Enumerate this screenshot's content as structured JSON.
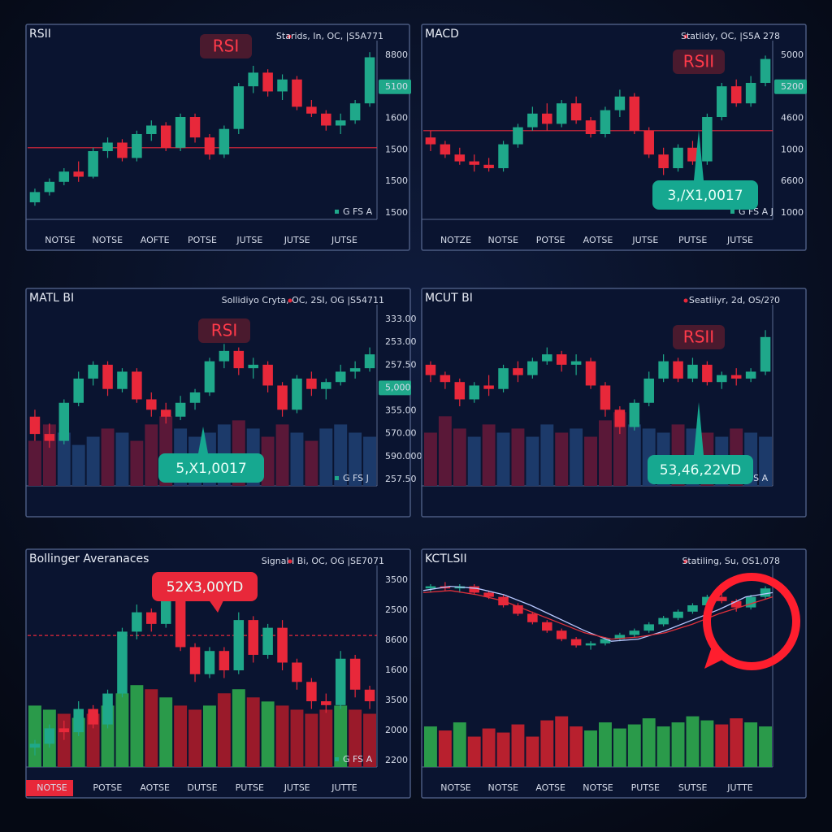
{
  "panels": [
    {
      "title": "RSII",
      "legend": "Starids, In, OC, |S5A771",
      "badge": "RSI",
      "callout": null,
      "y_labels": [
        "8800",
        "5100",
        "1600",
        "1500",
        "1500",
        "1500"
      ],
      "x_labels": [
        "NOTSE",
        "NOTSE",
        "AOFTE",
        "POTSE",
        "JUTSE",
        "JUTSE",
        "JUTSE"
      ],
      "footer": "G FS A",
      "ylim": [
        0,
        100
      ],
      "hline": 42,
      "candles": [
        [
          10,
          18,
          8,
          16
        ],
        [
          16,
          24,
          14,
          22
        ],
        [
          22,
          30,
          20,
          28
        ],
        [
          28,
          34,
          22,
          25
        ],
        [
          25,
          42,
          24,
          40
        ],
        [
          40,
          48,
          36,
          45
        ],
        [
          45,
          47,
          34,
          36
        ],
        [
          36,
          52,
          34,
          50
        ],
        [
          50,
          58,
          46,
          55
        ],
        [
          55,
          57,
          40,
          42
        ],
        [
          42,
          62,
          40,
          60
        ],
        [
          60,
          62,
          45,
          48
        ],
        [
          48,
          50,
          35,
          38
        ],
        [
          38,
          55,
          36,
          53
        ],
        [
          53,
          80,
          50,
          78
        ],
        [
          78,
          90,
          74,
          86
        ],
        [
          86,
          88,
          72,
          75
        ],
        [
          75,
          85,
          70,
          82
        ],
        [
          82,
          84,
          64,
          66
        ],
        [
          66,
          70,
          60,
          62
        ],
        [
          62,
          64,
          52,
          55
        ],
        [
          55,
          62,
          50,
          58
        ],
        [
          58,
          70,
          56,
          68
        ],
        [
          68,
          98,
          66,
          95
        ]
      ]
    },
    {
      "title": "MACD",
      "legend": "Statlidy, OC, |S5A 278",
      "badge": "RSII",
      "callout": "3,/X1,0017",
      "y_labels": [
        "5000",
        "5200",
        "4600",
        "1000",
        "6600",
        "1000"
      ],
      "x_labels": [
        "NOTZE",
        "NOTSE",
        "POTSE",
        "AOTSE",
        "JUTSE",
        "PUTSE",
        "JUTSE"
      ],
      "footer": "G FS A J",
      "ylim": [
        0,
        100
      ],
      "hline": 52,
      "candles": [
        [
          48,
          52,
          40,
          44
        ],
        [
          44,
          46,
          36,
          38
        ],
        [
          38,
          42,
          32,
          34
        ],
        [
          34,
          38,
          28,
          32
        ],
        [
          32,
          36,
          28,
          30
        ],
        [
          30,
          46,
          28,
          44
        ],
        [
          44,
          56,
          42,
          54
        ],
        [
          54,
          66,
          52,
          62
        ],
        [
          62,
          68,
          52,
          56
        ],
        [
          56,
          70,
          54,
          68
        ],
        [
          68,
          72,
          56,
          58
        ],
        [
          58,
          60,
          48,
          50
        ],
        [
          50,
          66,
          48,
          64
        ],
        [
          64,
          76,
          60,
          72
        ],
        [
          72,
          74,
          50,
          52
        ],
        [
          52,
          54,
          36,
          38
        ],
        [
          38,
          42,
          26,
          30
        ],
        [
          30,
          44,
          28,
          42
        ],
        [
          42,
          46,
          32,
          34
        ],
        [
          34,
          62,
          32,
          60
        ],
        [
          60,
          80,
          58,
          78
        ],
        [
          78,
          82,
          66,
          68
        ],
        [
          68,
          84,
          66,
          80
        ],
        [
          80,
          96,
          78,
          94
        ]
      ]
    },
    {
      "title": "MATL BI",
      "legend": "Sollidiyo Cryta, OC, 2SI, OG |S54711",
      "badge": "RSI",
      "callout": "5,X1,0017",
      "y_labels": [
        "333.00",
        "253.00",
        "257.50",
        "5,000",
        "355.00",
        "570.00",
        "590.000",
        "257.50"
      ],
      "x_labels": [],
      "footer": "G FS J",
      "ylim": [
        0,
        100
      ],
      "hline": null,
      "candles": [
        [
          40,
          44,
          26,
          30
        ],
        [
          30,
          36,
          22,
          26
        ],
        [
          26,
          50,
          24,
          48
        ],
        [
          48,
          66,
          46,
          62
        ],
        [
          62,
          72,
          58,
          70
        ],
        [
          70,
          72,
          52,
          56
        ],
        [
          56,
          68,
          54,
          66
        ],
        [
          66,
          68,
          48,
          50
        ],
        [
          50,
          54,
          40,
          44
        ],
        [
          44,
          48,
          36,
          40
        ],
        [
          40,
          52,
          38,
          48
        ],
        [
          48,
          56,
          44,
          54
        ],
        [
          54,
          74,
          52,
          72
        ],
        [
          72,
          82,
          68,
          78
        ],
        [
          78,
          80,
          64,
          68
        ],
        [
          68,
          74,
          62,
          70
        ],
        [
          70,
          72,
          54,
          58
        ],
        [
          58,
          60,
          40,
          44
        ],
        [
          44,
          64,
          42,
          62
        ],
        [
          62,
          66,
          52,
          56
        ],
        [
          56,
          62,
          50,
          60
        ],
        [
          60,
          70,
          58,
          66
        ],
        [
          66,
          72,
          62,
          68
        ],
        [
          68,
          80,
          66,
          76
        ]
      ],
      "volume": [
        22,
        30,
        26,
        20,
        24,
        28,
        26,
        22,
        30,
        34,
        28,
        24,
        26,
        30,
        32,
        28,
        24,
        30,
        26,
        22,
        28,
        30,
        26,
        24
      ]
    },
    {
      "title": "MCUT BI",
      "legend": "Seatliiyr, 2d, OS/2?0",
      "badge": "RSII",
      "callout": "53,46,22VD",
      "y_labels": [],
      "x_labels": [],
      "footer": "G FS A",
      "ylim": [
        0,
        100
      ],
      "hline": null,
      "candles": [
        [
          70,
          72,
          60,
          64
        ],
        [
          64,
          66,
          56,
          60
        ],
        [
          60,
          62,
          46,
          50
        ],
        [
          50,
          60,
          48,
          58
        ],
        [
          58,
          64,
          52,
          56
        ],
        [
          56,
          70,
          54,
          68
        ],
        [
          68,
          72,
          60,
          64
        ],
        [
          64,
          74,
          62,
          72
        ],
        [
          72,
          80,
          70,
          76
        ],
        [
          76,
          78,
          66,
          70
        ],
        [
          70,
          76,
          64,
          72
        ],
        [
          72,
          74,
          56,
          58
        ],
        [
          58,
          60,
          40,
          44
        ],
        [
          44,
          46,
          30,
          34
        ],
        [
          34,
          50,
          32,
          48
        ],
        [
          48,
          66,
          46,
          62
        ],
        [
          62,
          76,
          60,
          72
        ],
        [
          72,
          74,
          60,
          62
        ],
        [
          62,
          74,
          60,
          70
        ],
        [
          70,
          72,
          58,
          60
        ],
        [
          60,
          66,
          56,
          64
        ],
        [
          64,
          68,
          58,
          62
        ],
        [
          62,
          68,
          60,
          66
        ],
        [
          66,
          90,
          64,
          86
        ]
      ],
      "volume": [
        26,
        34,
        28,
        24,
        30,
        26,
        28,
        24,
        30,
        26,
        28,
        24,
        32,
        36,
        30,
        28,
        26,
        30,
        28,
        26,
        24,
        28,
        26,
        24
      ]
    },
    {
      "title": "Bollinger Averanaces",
      "legend": "Signal I Bi, OC, OG |SE7071",
      "badge": null,
      "callout": "52X3,00YD",
      "y_labels": [
        "3500",
        "2500",
        "8600",
        "1600",
        "3500",
        "2000",
        "2200"
      ],
      "x_labels": [
        "NOTSE",
        "POTSE",
        "AOTSE",
        "DUTSE",
        "PUTSE",
        "JUTSE",
        "JUTTE"
      ],
      "footer": "G FS A",
      "ylim": [
        0,
        100
      ],
      "hline": 68,
      "candles": [
        [
          10,
          14,
          6,
          12
        ],
        [
          12,
          22,
          10,
          20
        ],
        [
          20,
          24,
          14,
          18
        ],
        [
          18,
          34,
          16,
          30
        ],
        [
          30,
          32,
          20,
          22
        ],
        [
          22,
          40,
          20,
          38
        ],
        [
          38,
          72,
          36,
          70
        ],
        [
          70,
          84,
          66,
          80
        ],
        [
          80,
          82,
          70,
          74
        ],
        [
          74,
          90,
          72,
          86
        ],
        [
          86,
          88,
          60,
          62
        ],
        [
          62,
          64,
          44,
          48
        ],
        [
          48,
          62,
          46,
          60
        ],
        [
          60,
          62,
          46,
          50
        ],
        [
          50,
          80,
          48,
          76
        ],
        [
          76,
          78,
          54,
          58
        ],
        [
          58,
          74,
          56,
          72
        ],
        [
          72,
          76,
          50,
          54
        ],
        [
          54,
          56,
          40,
          44
        ],
        [
          44,
          46,
          30,
          34
        ],
        [
          34,
          38,
          28,
          32
        ],
        [
          32,
          60,
          30,
          56
        ],
        [
          56,
          58,
          36,
          40
        ],
        [
          40,
          42,
          30,
          34
        ]
      ],
      "volume": [
        30,
        28,
        26,
        24,
        26,
        30,
        36,
        40,
        38,
        34,
        30,
        28,
        30,
        36,
        38,
        34,
        32,
        30,
        28,
        26,
        28,
        30,
        28,
        26
      ]
    },
    {
      "title": "KCTLSII",
      "legend": "Statiling, Su, OS1,078",
      "badge": null,
      "callout": null,
      "y_labels": [],
      "x_labels": [
        "NOTSE",
        "NOTSE",
        "AOTSE",
        "NOTSE",
        "PUTSE",
        "SUTSE",
        "JUTTE"
      ],
      "footer": null,
      "ylim": [
        0,
        100
      ],
      "hline": null,
      "candles": [
        [
          86,
          90,
          82,
          88
        ],
        [
          88,
          92,
          84,
          86
        ],
        [
          86,
          90,
          82,
          88
        ],
        [
          88,
          90,
          80,
          82
        ],
        [
          82,
          84,
          76,
          78
        ],
        [
          78,
          80,
          68,
          70
        ],
        [
          70,
          72,
          60,
          62
        ],
        [
          62,
          64,
          52,
          54
        ],
        [
          54,
          56,
          44,
          46
        ],
        [
          46,
          48,
          36,
          38
        ],
        [
          38,
          40,
          30,
          32
        ],
        [
          32,
          36,
          28,
          34
        ],
        [
          34,
          40,
          32,
          38
        ],
        [
          38,
          44,
          36,
          42
        ],
        [
          42,
          48,
          40,
          46
        ],
        [
          46,
          54,
          44,
          52
        ],
        [
          52,
          60,
          50,
          58
        ],
        [
          58,
          66,
          56,
          64
        ],
        [
          64,
          72,
          62,
          70
        ],
        [
          70,
          80,
          68,
          78
        ],
        [
          78,
          84,
          72,
          74
        ],
        [
          74,
          76,
          64,
          68
        ],
        [
          68,
          80,
          66,
          78
        ],
        [
          78,
          88,
          76,
          86
        ]
      ],
      "lines": [
        {
          "color": "#b8c8ff",
          "values": [
            84,
            88,
            86,
            80,
            70,
            58,
            46,
            36,
            38,
            46,
            56,
            66,
            78,
            82
          ]
        },
        {
          "color": "#e0303a",
          "values": [
            82,
            84,
            80,
            74,
            64,
            54,
            44,
            38,
            40,
            44,
            52,
            62,
            70,
            78
          ]
        }
      ],
      "volume": [
        40,
        36,
        44,
        30,
        38,
        34,
        42,
        30,
        46,
        50,
        40,
        36,
        44,
        38,
        42,
        48,
        40,
        44,
        50,
        46,
        42,
        48,
        44,
        40
      ]
    }
  ]
}
